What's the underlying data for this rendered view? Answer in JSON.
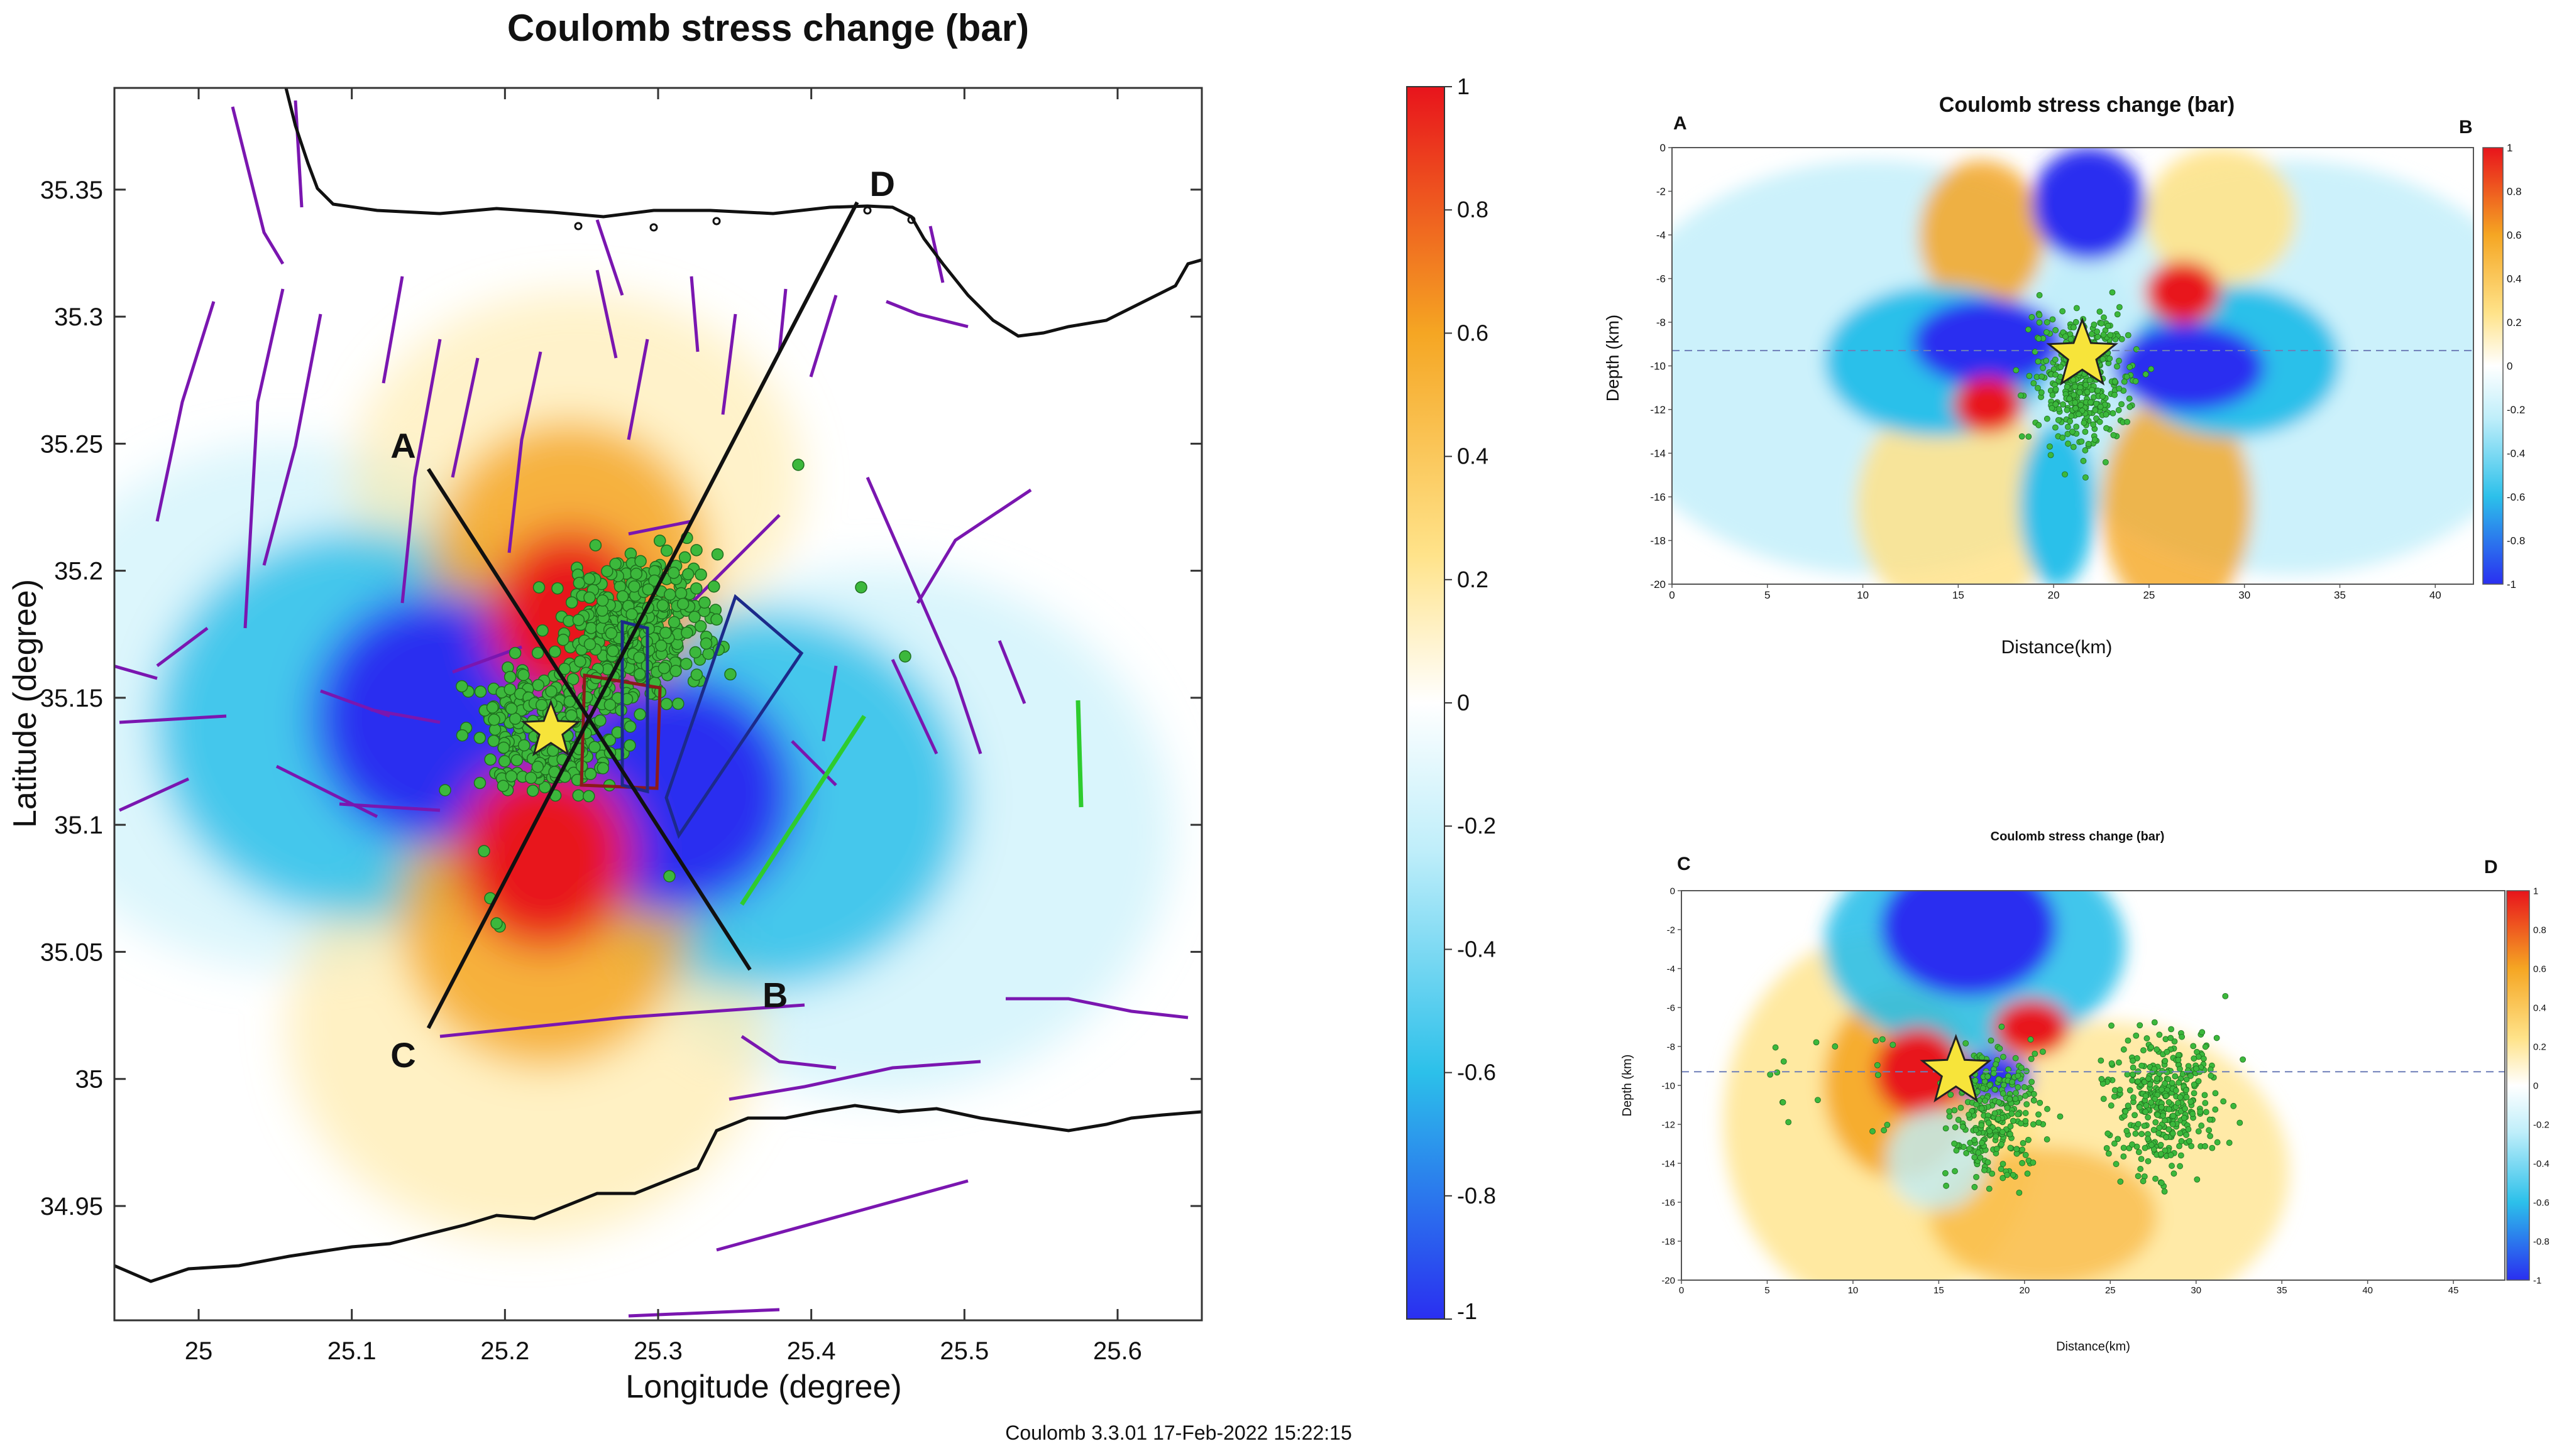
{
  "footer": "Coulomb 3.3.01 17-Feb-2022 15:22:15",
  "colors": {
    "strong_pos": "#e8141c",
    "orange": "#f5a623",
    "yellow": "#ffe38a",
    "zero": "#ffffff",
    "light_cyan": "#bfeefa",
    "cyan": "#2cc0ea",
    "strong_neg": "#2a2ff0",
    "quake": "#3cb83c",
    "fault": "#7a16b0",
    "coast": "#111111",
    "star": "#f7e43a",
    "segment": "#111111",
    "receiver_fault": "#2ecc2e"
  },
  "chart_data": [
    {
      "id": "map",
      "type": "heatmap",
      "title": "Coulomb stress change (bar)",
      "xlabel": "Longitude (degree)",
      "ylabel": "Latitude  (degree)",
      "xlim": [
        24.945,
        25.655
      ],
      "ylim": [
        34.905,
        35.39
      ],
      "xticks": [
        "25",
        "25.1",
        "25.2",
        "25.3",
        "25.4",
        "25.5",
        "25.6"
      ],
      "yticks": [
        "34.95",
        "35",
        "35.05",
        "35.1",
        "35.15",
        "35.2",
        "35.25",
        "35.3",
        "35.35"
      ],
      "colorbar": {
        "range": [
          -1,
          1
        ],
        "ticks": [
          "1",
          "0.8",
          "0.6",
          "0.4",
          "0.2",
          "0",
          "-0.2",
          "-0.4",
          "-0.6",
          "-0.8",
          "-1"
        ]
      },
      "epicenter": {
        "lon": 25.23,
        "lat": 35.137
      },
      "profiles": [
        {
          "start_label": "A",
          "end_label": "B",
          "start": [
            25.15,
            35.24
          ],
          "end": [
            25.36,
            35.043
          ]
        },
        {
          "start_label": "C",
          "end_label": "D",
          "start": [
            25.15,
            35.02
          ],
          "end": [
            25.43,
            35.345
          ]
        }
      ],
      "quake_cluster_center": {
        "lon": 25.27,
        "lat": 35.165
      },
      "quake_count_visible": 600
    },
    {
      "id": "section_ab",
      "type": "heatmap",
      "title": "Coulomb stress change (bar)",
      "left_label": "A",
      "right_label": "B",
      "xlabel": "Distance(km)",
      "ylabel": "Depth (km)",
      "xlim": [
        0,
        42
      ],
      "ylim": [
        -20,
        0
      ],
      "xticks": [
        "0",
        "5",
        "10",
        "15",
        "20",
        "25",
        "30",
        "35",
        "40"
      ],
      "yticks": [
        "0",
        "-2",
        "-4",
        "-6",
        "-8",
        "-10",
        "-12",
        "-14",
        "-16",
        "-18",
        "-20"
      ],
      "colorbar_ticks": [
        "1",
        "0.8",
        "0.6",
        "0.4",
        "0.2",
        "0",
        "-0.2",
        "-0.4",
        "-0.6",
        "-0.8",
        "-1"
      ],
      "reference_depth": -9.3,
      "hypocenter": {
        "distance": 21.5,
        "depth": -9.5
      }
    },
    {
      "id": "section_cd",
      "type": "heatmap",
      "title": "Coulomb stress change (bar)",
      "left_label": "C",
      "right_label": "D",
      "xlabel": "Distance(km)",
      "ylabel": "Depth (km)",
      "xlim": [
        0,
        48
      ],
      "ylim": [
        -20,
        0
      ],
      "xticks": [
        "0",
        "5",
        "10",
        "15",
        "20",
        "25",
        "30",
        "35",
        "40",
        "45"
      ],
      "yticks": [
        "0",
        "-2",
        "-4",
        "-6",
        "-8",
        "-10",
        "-12",
        "-14",
        "-16",
        "-18",
        "-20"
      ],
      "colorbar_ticks": [
        "1",
        "0.8",
        "0.6",
        "0.4",
        "0.2",
        "0",
        "-0.2",
        "-0.4",
        "-0.6",
        "-0.8",
        "-1"
      ],
      "reference_depth": -9.3,
      "hypocenter": {
        "distance": 16,
        "depth": -9.3
      }
    }
  ]
}
